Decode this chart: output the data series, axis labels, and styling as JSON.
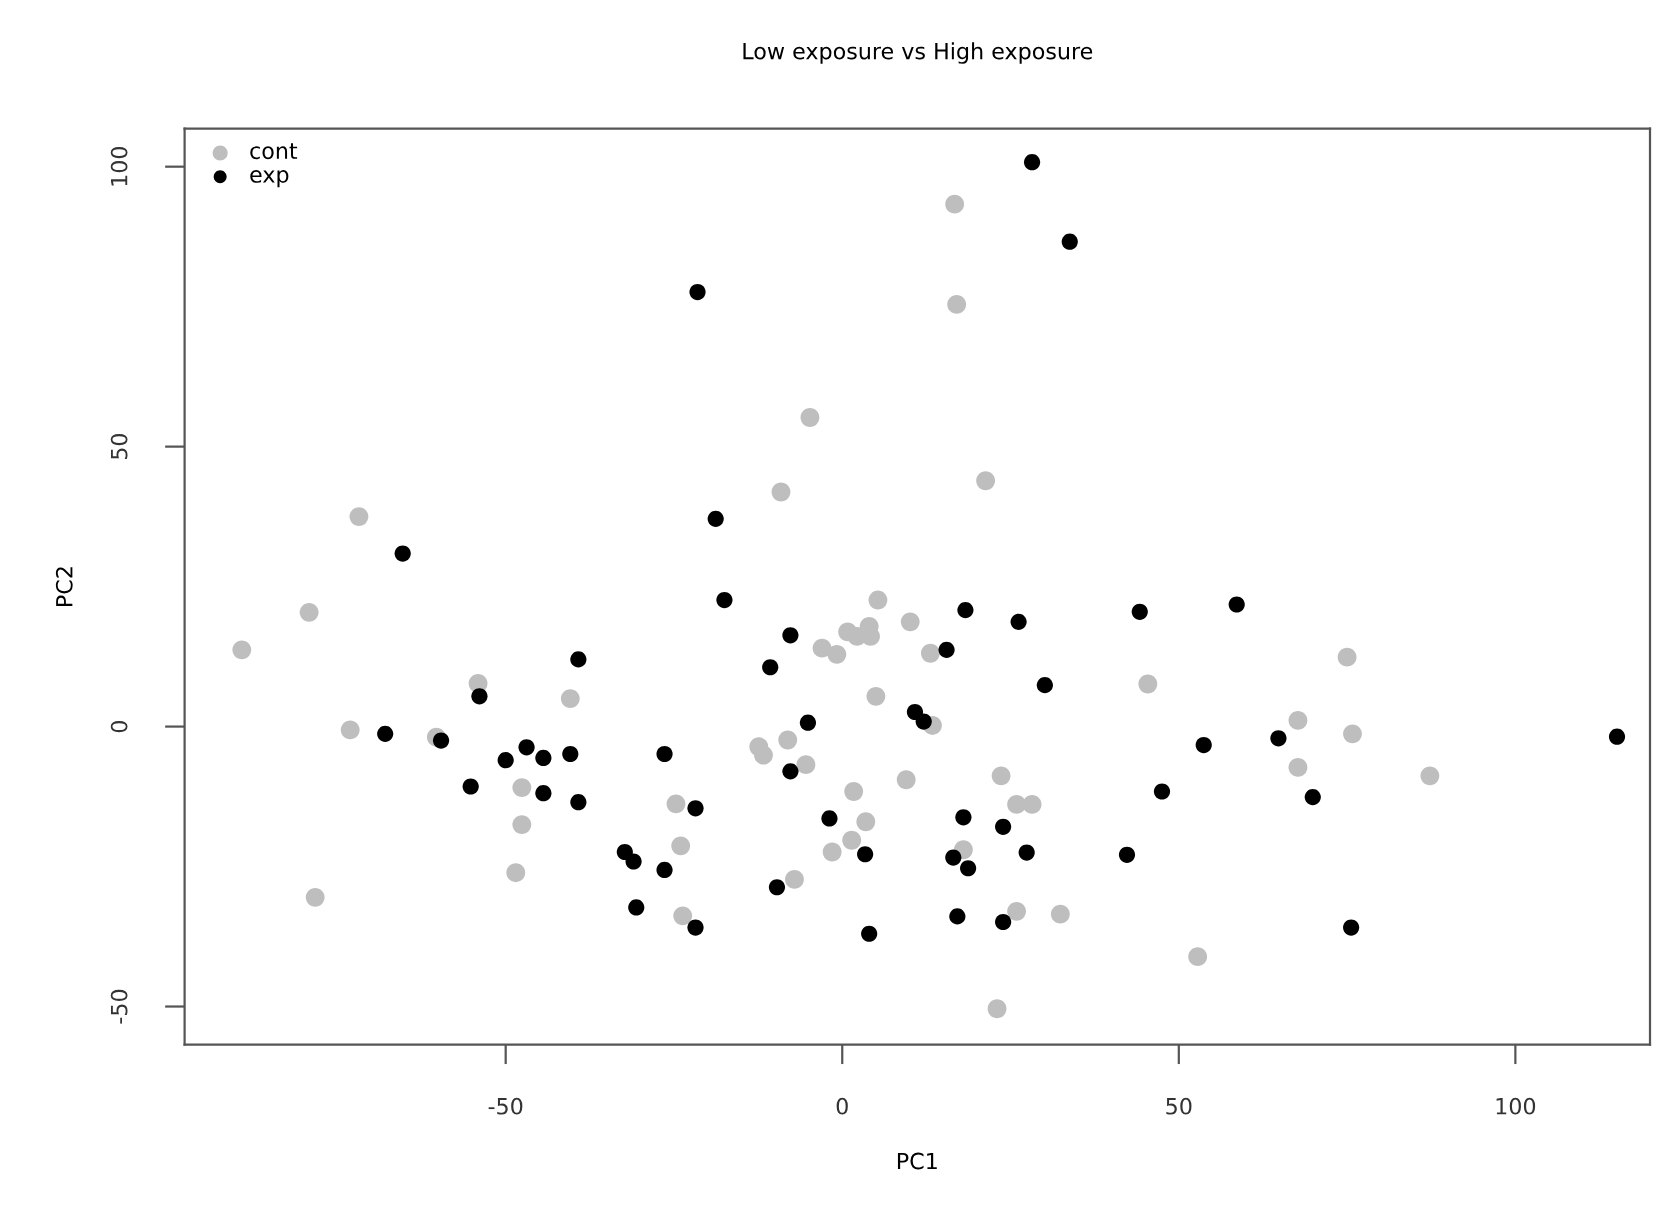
{
  "chart_data": {
    "type": "scatter",
    "title": "Low exposure vs High exposure",
    "xlabel": "PC1",
    "ylabel": "PC2",
    "xlim": [
      -97.7,
      120
    ],
    "ylim": [
      -56.8,
      106.8
    ],
    "xticks": [
      -50,
      0,
      50,
      100
    ],
    "yticks": [
      -50,
      0,
      50,
      100
    ],
    "marker": "circle",
    "grid": false,
    "legend": "top left",
    "series": [
      {
        "name": "cont",
        "color": "#bebebe",
        "x": [
          -89.2,
          -79.2,
          -78.3,
          -71.8,
          -73.1,
          -60.3,
          -54.1,
          -40.4,
          -47.6,
          -47.6,
          -48.5,
          5.3,
          10.1,
          -3.0,
          -0.8,
          0.8,
          2.2,
          4.0,
          4.2,
          13.1,
          5.0,
          13.4,
          -12.4,
          -11.7,
          -8.1,
          -5.4,
          1.7,
          9.5,
          23.6,
          25.9,
          28.2,
          3.5,
          1.4,
          -1.5,
          -7.1,
          18.0,
          25.9,
          32.4,
          23.0,
          45.4,
          -24.7,
          -24.0,
          -23.7,
          16.7,
          17.0,
          -4.8,
          -9.1,
          21.3,
          75.0,
          67.7,
          75.8,
          67.7,
          87.3,
          52.8
        ],
        "values": [
          13.7,
          20.4,
          -30.5,
          37.5,
          -0.6,
          -1.9,
          7.7,
          5.0,
          -10.9,
          -17.5,
          -26.1,
          22.6,
          18.7,
          14.0,
          12.9,
          16.9,
          16.1,
          17.9,
          16.1,
          13.1,
          5.4,
          0.2,
          -3.6,
          -5.1,
          -2.4,
          -6.8,
          -11.6,
          -9.5,
          -8.8,
          -13.9,
          -13.9,
          -17.0,
          -20.3,
          -22.4,
          -27.3,
          -22.0,
          -33.0,
          -33.5,
          -50.4,
          7.6,
          -13.8,
          -21.3,
          -33.8,
          93.3,
          75.4,
          55.2,
          41.9,
          43.9,
          12.4,
          1.1,
          -1.3,
          -7.3,
          -8.8,
          -41.1
        ]
      },
      {
        "name": "exp",
        "color": "#000000",
        "x": [
          28.2,
          33.8,
          -21.5,
          -18.8,
          -65.3,
          -39.2,
          -53.9,
          -67.9,
          -59.6,
          -46.9,
          -50.0,
          -44.4,
          -40.4,
          -55.2,
          -44.4,
          -39.2,
          -26.4,
          -32.3,
          -31.0,
          -26.4,
          -30.6,
          -17.5,
          -7.7,
          -10.7,
          -5.1,
          -7.7,
          -21.8,
          -21.8,
          -9.7,
          -1.9,
          3.4,
          4.0,
          18.3,
          26.2,
          15.5,
          10.8,
          12.1,
          30.1,
          44.2,
          18.0,
          23.9,
          16.5,
          18.7,
          27.4,
          17.1,
          23.9,
          42.3,
          47.5,
          58.6,
          53.7,
          64.8,
          69.9,
          75.6,
          115.1
        ],
        "values": [
          100.8,
          86.6,
          77.6,
          37.1,
          30.9,
          12.0,
          5.4,
          -1.3,
          -2.5,
          -3.7,
          -6.0,
          -5.6,
          -4.9,
          -10.7,
          -11.9,
          -13.5,
          -4.9,
          -22.4,
          -24.1,
          -25.6,
          -32.3,
          22.6,
          16.3,
          10.6,
          0.7,
          -8.0,
          -14.6,
          -35.9,
          -28.7,
          -16.4,
          -22.8,
          -37.0,
          20.8,
          18.7,
          13.7,
          2.6,
          0.9,
          7.4,
          20.5,
          -16.2,
          -17.9,
          -23.4,
          -25.3,
          -22.5,
          -33.9,
          -34.9,
          -22.9,
          -11.6,
          21.8,
          -3.3,
          -2.1,
          -12.6,
          -35.9,
          -1.8
        ]
      }
    ]
  }
}
